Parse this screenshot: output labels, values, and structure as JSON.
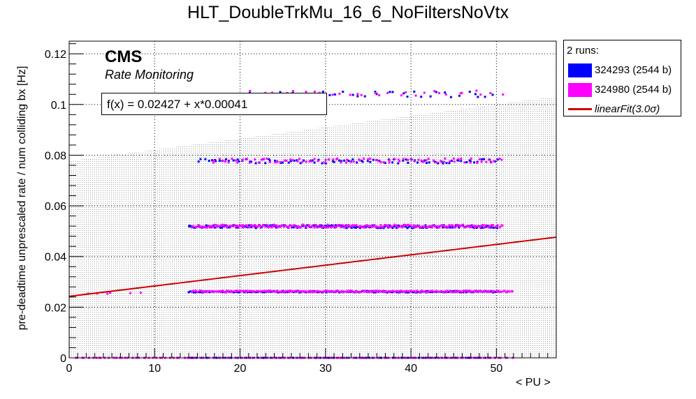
{
  "chart_data": {
    "type": "scatter",
    "title": "HLT_DoubleTrkMu_16_6_NoFiltersNoVtx",
    "xlabel": "< PU >",
    "ylabel": "pre-deadtime unprescaled rate / num colliding bx [Hz]",
    "xlim": [
      0,
      57
    ],
    "ylim": [
      0,
      0.125
    ],
    "xticks": [
      "0",
      "10",
      "20",
      "30",
      "40",
      "50"
    ],
    "yticks": [
      "0",
      "0.02",
      "0.04",
      "0.06",
      "0.08",
      "0.1",
      "0.12"
    ],
    "grid": true,
    "legend_position": "outside-right",
    "cms_label": "CMS",
    "cms_sublabel": "Rate Monitoring",
    "fit_text": "f(x) = 0.02427 + x*0.00041",
    "fit": {
      "intercept": 0.02427,
      "slope": 0.00041,
      "x_range": [
        0,
        57
      ],
      "color": "#cc0000"
    },
    "fit_band": {
      "lower": [
        [
          0,
          0
        ],
        [
          57,
          0
        ]
      ],
      "upper": [
        [
          0,
          0.0777
        ],
        [
          57,
          0.1032
        ]
      ]
    },
    "legend": {
      "header": "2 runs:",
      "entries": [
        {
          "label": "324293 (2544 b)",
          "color": "#0000ff"
        },
        {
          "label": "324980 (2544 b)",
          "color": "#ff00ff"
        },
        {
          "label": "linearFit(3.0σ)",
          "color": "#cc0000"
        }
      ]
    },
    "series": [
      {
        "name": "324293 (2544 b)",
        "color": "#0000ff",
        "clusters": [
          {
            "x_range": [
              13.9,
              50.3
            ],
            "y": 0.0,
            "n": 95
          },
          {
            "x_range": [
              13.9,
              50.3
            ],
            "y": 0.0261,
            "n": 200
          },
          {
            "x_range": [
              13.9,
              50.3
            ],
            "y": 0.0518,
            "n": 200
          },
          {
            "x_range": [
              14.9,
              50.3
            ],
            "y": 0.0776,
            "n": 95
          },
          {
            "x_range": [
              20.7,
              50.3
            ],
            "y": 0.104,
            "n": 35
          }
        ]
      },
      {
        "name": "324980 (2544 b)",
        "color": "#ff00ff",
        "clusters": [
          {
            "x_range": [
              0.5,
              52.0
            ],
            "y": 0.0,
            "n": 130
          },
          {
            "x_range": [
              1.0,
              8.5
            ],
            "y": 0.0255,
            "n": 6
          },
          {
            "x_range": [
              14.3,
              52.0
            ],
            "y": 0.0262,
            "n": 230
          },
          {
            "x_range": [
              14.3,
              50.8
            ],
            "y": 0.052,
            "n": 210
          },
          {
            "x_range": [
              16.5,
              50.8
            ],
            "y": 0.0778,
            "n": 90
          },
          {
            "x_range": [
              21.0,
              50.8
            ],
            "y": 0.1045,
            "n": 30
          }
        ]
      }
    ]
  }
}
